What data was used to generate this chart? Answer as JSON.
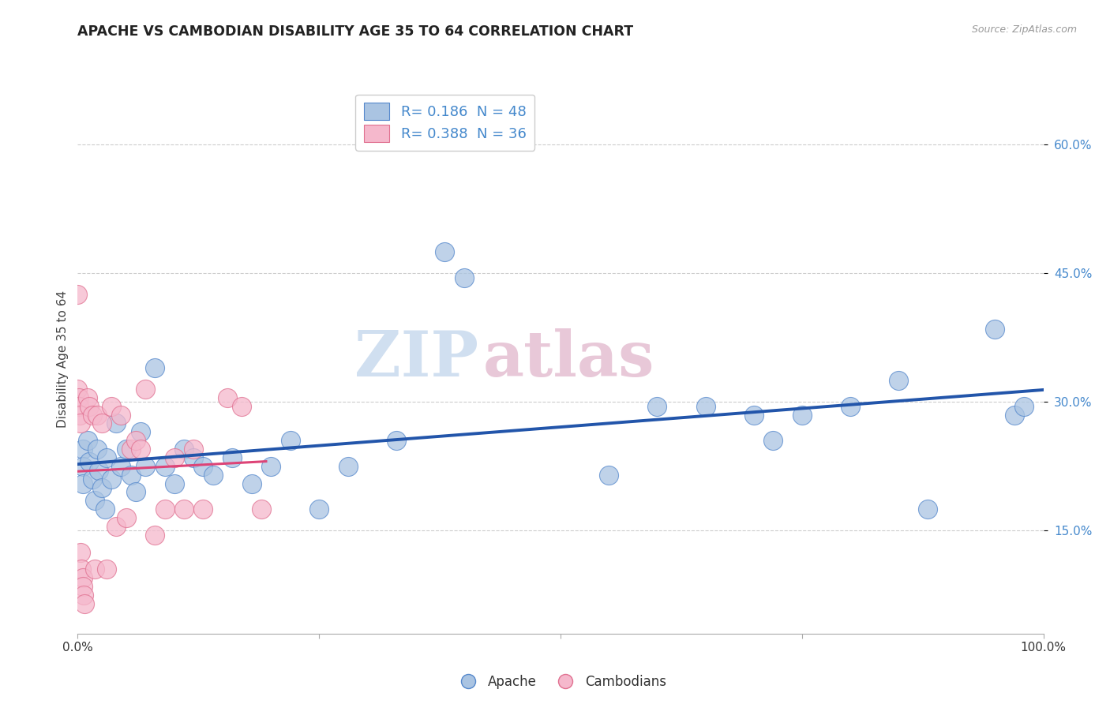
{
  "title": "APACHE VS CAMBODIAN DISABILITY AGE 35 TO 64 CORRELATION CHART",
  "source": "Source: ZipAtlas.com",
  "ylabel": "Disability Age 35 to 64",
  "xlim": [
    0,
    1.0
  ],
  "ylim": [
    0.03,
    0.67
  ],
  "background_color": "#ffffff",
  "plot_bg_color": "#ffffff",
  "watermark_zip": "ZIP",
  "watermark_atlas": "atlas",
  "apache_color": "#aac4e2",
  "apache_edge_color": "#5588cc",
  "apache_line_color": "#2255aa",
  "cambodian_color": "#f5b8cc",
  "cambodian_edge_color": "#e07090",
  "cambodian_line_color": "#dd4477",
  "grid_color": "#cccccc",
  "tick_color": "#4488cc",
  "R_apache": 0.186,
  "N_apache": 48,
  "R_cambodian": 0.388,
  "N_cambodian": 36,
  "apache_x": [
    0.005,
    0.005,
    0.005,
    0.01,
    0.012,
    0.015,
    0.018,
    0.02,
    0.022,
    0.025,
    0.028,
    0.03,
    0.035,
    0.04,
    0.045,
    0.05,
    0.055,
    0.06,
    0.065,
    0.07,
    0.08,
    0.09,
    0.1,
    0.11,
    0.12,
    0.13,
    0.14,
    0.16,
    0.18,
    0.2,
    0.22,
    0.25,
    0.28,
    0.33,
    0.38,
    0.4,
    0.55,
    0.6,
    0.65,
    0.7,
    0.72,
    0.75,
    0.8,
    0.85,
    0.88,
    0.95,
    0.97,
    0.98
  ],
  "apache_y": [
    0.245,
    0.225,
    0.205,
    0.255,
    0.23,
    0.21,
    0.185,
    0.245,
    0.22,
    0.2,
    0.175,
    0.235,
    0.21,
    0.275,
    0.225,
    0.245,
    0.215,
    0.195,
    0.265,
    0.225,
    0.34,
    0.225,
    0.205,
    0.245,
    0.235,
    0.225,
    0.215,
    0.235,
    0.205,
    0.225,
    0.255,
    0.175,
    0.225,
    0.255,
    0.475,
    0.445,
    0.215,
    0.295,
    0.295,
    0.285,
    0.255,
    0.285,
    0.295,
    0.325,
    0.175,
    0.385,
    0.285,
    0.295
  ],
  "cambodian_x": [
    0.0,
    0.0,
    0.001,
    0.001,
    0.002,
    0.003,
    0.003,
    0.004,
    0.005,
    0.005,
    0.006,
    0.007,
    0.01,
    0.012,
    0.015,
    0.018,
    0.02,
    0.025,
    0.03,
    0.035,
    0.04,
    0.045,
    0.05,
    0.055,
    0.06,
    0.065,
    0.07,
    0.08,
    0.09,
    0.1,
    0.11,
    0.12,
    0.13,
    0.155,
    0.17,
    0.19
  ],
  "cambodian_y": [
    0.425,
    0.315,
    0.305,
    0.295,
    0.285,
    0.275,
    0.125,
    0.105,
    0.095,
    0.085,
    0.075,
    0.065,
    0.305,
    0.295,
    0.285,
    0.105,
    0.285,
    0.275,
    0.105,
    0.295,
    0.155,
    0.285,
    0.165,
    0.245,
    0.255,
    0.245,
    0.315,
    0.145,
    0.175,
    0.235,
    0.175,
    0.245,
    0.175,
    0.305,
    0.295,
    0.175
  ]
}
